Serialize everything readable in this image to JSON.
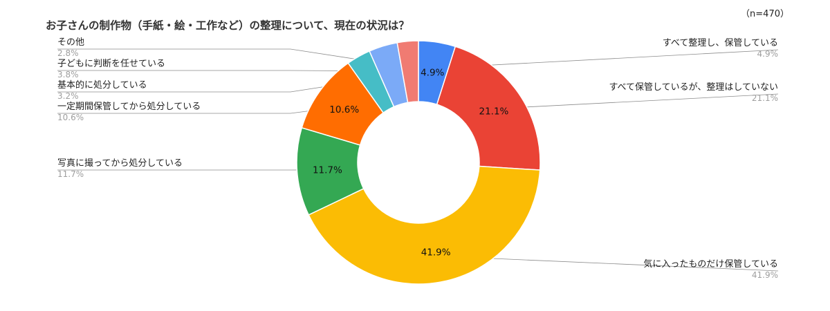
{
  "chart_data": {
    "type": "pie",
    "donut": true,
    "title": "お子さんの制作物（手紙・絵・工作など）の整理について、現在の状況は？",
    "note": "（n=470）",
    "start_angle_deg": 0,
    "direction": "clockwise",
    "slices": [
      {
        "label": "すべて整理し、保管している",
        "value": 4.9,
        "display": "4.9%",
        "color": "#4285F4",
        "show_inner_label": true
      },
      {
        "label": "すべて保管しているが、整理はしていない",
        "value": 21.1,
        "display": "21.1%",
        "color": "#EA4335",
        "show_inner_label": true
      },
      {
        "label": "気に入ったものだけ保管している",
        "value": 41.9,
        "display": "41.9%",
        "color": "#FBBC04",
        "show_inner_label": true
      },
      {
        "label": "写真に撮ってから処分している",
        "value": 11.7,
        "display": "11.7%",
        "color": "#34A853",
        "show_inner_label": true
      },
      {
        "label": "一定期間保管してから処分している",
        "value": 10.6,
        "display": "10.6%",
        "color": "#FF6D01",
        "show_inner_label": true
      },
      {
        "label": "基本的に処分している",
        "value": 3.2,
        "display": "3.2%",
        "color": "#46BDC6",
        "show_inner_label": false
      },
      {
        "label": "子どもに判断を任せている",
        "value": 3.8,
        "display": "3.8%",
        "color": "#7BAAF7",
        "show_inner_label": false
      },
      {
        "label": "その他",
        "value": 2.8,
        "display": "2.8%",
        "color": "#F07B72",
        "show_inner_label": false
      }
    ]
  }
}
